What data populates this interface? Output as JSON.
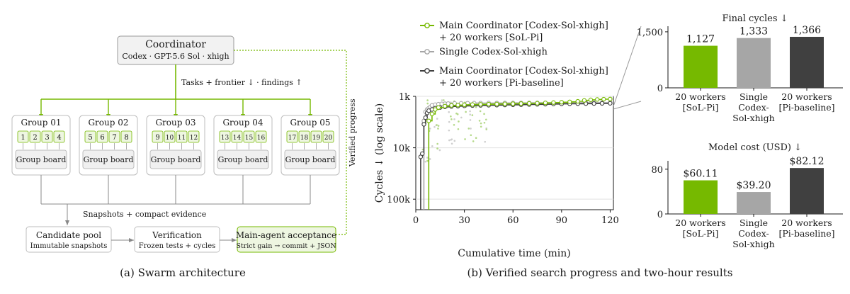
{
  "panel_a": {
    "caption": "(a) Swarm architecture",
    "coordinator": {
      "title": "Coordinator",
      "subtitle": "Codex · GPT-5.6 Sol · xhigh"
    },
    "tasks_label": "Tasks + frontier ↓ · findings ↑",
    "verified_label": "Verified progress",
    "groups": [
      {
        "title": "Group 01",
        "workers": [
          "1",
          "2",
          "3",
          "4"
        ],
        "board": "Group board"
      },
      {
        "title": "Group 02",
        "workers": [
          "5",
          "6",
          "7",
          "8"
        ],
        "board": "Group board"
      },
      {
        "title": "Group 03",
        "workers": [
          "9",
          "10",
          "11",
          "12"
        ],
        "board": "Group board"
      },
      {
        "title": "Group 04",
        "workers": [
          "13",
          "14",
          "15",
          "16"
        ],
        "board": "Group board"
      },
      {
        "title": "Group 05",
        "workers": [
          "17",
          "18",
          "19",
          "20"
        ],
        "board": "Group board"
      }
    ],
    "snapshots_label": "Snapshots + compact evidence",
    "pool": {
      "title": "Candidate pool",
      "subtitle": "Immutable snapshots"
    },
    "verification": {
      "title": "Verification",
      "subtitle": "Frozen tests + cycles"
    },
    "acceptance": {
      "title": "Main-agent acceptance",
      "subtitle": "Strict gain → commit + JSON"
    }
  },
  "panel_b": {
    "caption": "(b) Verified search progress and two-hour results",
    "legend": [
      {
        "line1": "Main Coordinator [Codex-Sol-xhigh]",
        "line2": "+ 20 workers [SoL-Pi]",
        "color": "#76b900",
        "fill": "#ffffff"
      },
      {
        "line1": "Single Codex-Sol-xhigh",
        "line2": "",
        "color": "#a6a6a6",
        "fill": "#ffffff"
      },
      {
        "line1": "Main Coordinator [Codex-Sol-xhigh]",
        "line2": "+ 20 workers [Pi-baseline]",
        "color": "#404040",
        "fill": "#ffffff"
      }
    ]
  },
  "chart_data": [
    {
      "type": "line",
      "xlabel": "Cumulative time (min)",
      "ylabel": "Cycles ↓ (log scale)",
      "x_ticks": [
        "0",
        "30",
        "60",
        "90",
        "120"
      ],
      "y_ticks": [
        "1k",
        "10k",
        "100k"
      ],
      "xlim": [
        0,
        122
      ],
      "ylim": [
        1000,
        160000
      ],
      "y_scale": "log-inverted",
      "grid": "horizontal",
      "series": [
        {
          "name": "Main Coordinator [Codex-Sol-xhigh] + 20 workers [SoL-Pi]",
          "color": "#76b900",
          "points": [
            [
              8,
              3000
            ],
            [
              10,
              2200
            ],
            [
              12,
              1800
            ],
            [
              14,
              1650
            ],
            [
              18,
              1550
            ],
            [
              22,
              1500
            ],
            [
              26,
              1480
            ],
            [
              30,
              1460
            ],
            [
              35,
              1440
            ],
            [
              40,
              1430
            ],
            [
              45,
              1420
            ],
            [
              50,
              1410
            ],
            [
              55,
              1400
            ],
            [
              60,
              1390
            ],
            [
              65,
              1380
            ],
            [
              70,
              1370
            ],
            [
              75,
              1360
            ],
            [
              80,
              1340
            ],
            [
              85,
              1320
            ],
            [
              90,
              1300
            ],
            [
              95,
              1280
            ],
            [
              100,
              1250
            ],
            [
              104,
              1200
            ],
            [
              108,
              1170
            ],
            [
              112,
              1150
            ],
            [
              116,
              1135
            ],
            [
              120,
              1127
            ]
          ],
          "final": 1127
        },
        {
          "name": "Single Codex-Sol-xhigh",
          "color": "#a6a6a6",
          "points": [
            [
              5,
              3000
            ],
            [
              6,
              2000
            ],
            [
              7,
              1800
            ],
            [
              8,
              1700
            ],
            [
              9,
              1600
            ],
            [
              10,
              1500
            ],
            [
              12,
              1450
            ],
            [
              14,
              1420
            ],
            [
              16,
              1400
            ],
            [
              18,
              1390
            ],
            [
              20,
              1380
            ],
            [
              24,
              1370
            ],
            [
              28,
              1365
            ],
            [
              32,
              1360
            ],
            [
              36,
              1355
            ],
            [
              40,
              1352
            ],
            [
              45,
              1350
            ],
            [
              50,
              1348
            ],
            [
              55,
              1346
            ],
            [
              60,
              1344
            ],
            [
              65,
              1342
            ],
            [
              70,
              1340
            ],
            [
              75,
              1339
            ],
            [
              80,
              1338
            ],
            [
              85,
              1337
            ],
            [
              90,
              1336
            ],
            [
              95,
              1335
            ],
            [
              100,
              1334
            ],
            [
              105,
              1334
            ],
            [
              110,
              1333
            ],
            [
              115,
              1333
            ],
            [
              120,
              1333
            ]
          ],
          "final": 1333
        },
        {
          "name": "Main Coordinator [Codex-Sol-xhigh] + 20 workers [Pi-baseline]",
          "color": "#404040",
          "points": [
            [
              3,
              15000
            ],
            [
              4,
              13000
            ],
            [
              5,
              3500
            ],
            [
              6,
              2600
            ],
            [
              7,
              2100
            ],
            [
              8,
              1900
            ],
            [
              10,
              1800
            ],
            [
              12,
              1700
            ],
            [
              15,
              1650
            ],
            [
              18,
              1600
            ],
            [
              22,
              1570
            ],
            [
              26,
              1550
            ],
            [
              30,
              1530
            ],
            [
              35,
              1510
            ],
            [
              40,
              1500
            ],
            [
              45,
              1490
            ],
            [
              50,
              1480
            ],
            [
              55,
              1470
            ],
            [
              60,
              1460
            ],
            [
              65,
              1450
            ],
            [
              70,
              1440
            ],
            [
              75,
              1430
            ],
            [
              80,
              1420
            ],
            [
              85,
              1410
            ],
            [
              90,
              1400
            ],
            [
              95,
              1395
            ],
            [
              100,
              1390
            ],
            [
              105,
              1385
            ],
            [
              110,
              1380
            ],
            [
              115,
              1370
            ],
            [
              120,
              1366
            ]
          ],
          "final": 1366
        }
      ]
    },
    {
      "type": "bar",
      "title": "Final cycles ↓",
      "categories": [
        "20 workers\n[SoL-Pi]",
        "Single\nCodex-\nSol-xhigh",
        "20 workers\n[Pi-baseline]"
      ],
      "values": [
        1127,
        1333,
        1366
      ],
      "labels": [
        "1,127",
        "1,333",
        "1,366"
      ],
      "colors": [
        "#76b900",
        "#a6a6a6",
        "#404040"
      ],
      "y_ticks": [
        "0",
        "1,500"
      ],
      "ylim": [
        0,
        1650
      ]
    },
    {
      "type": "bar",
      "title": "Model cost (USD) ↓",
      "categories": [
        "20 workers\n[SoL-Pi]",
        "Single\nCodex-\nSol-xhigh",
        "20 workers\n[Pi-baseline]"
      ],
      "values": [
        60.11,
        39.2,
        82.12
      ],
      "labels": [
        "$60.11",
        "$39.20",
        "$82.12"
      ],
      "colors": [
        "#76b900",
        "#a6a6a6",
        "#404040"
      ],
      "y_ticks": [
        "0",
        "80"
      ],
      "ylim": [
        0,
        95
      ]
    }
  ]
}
